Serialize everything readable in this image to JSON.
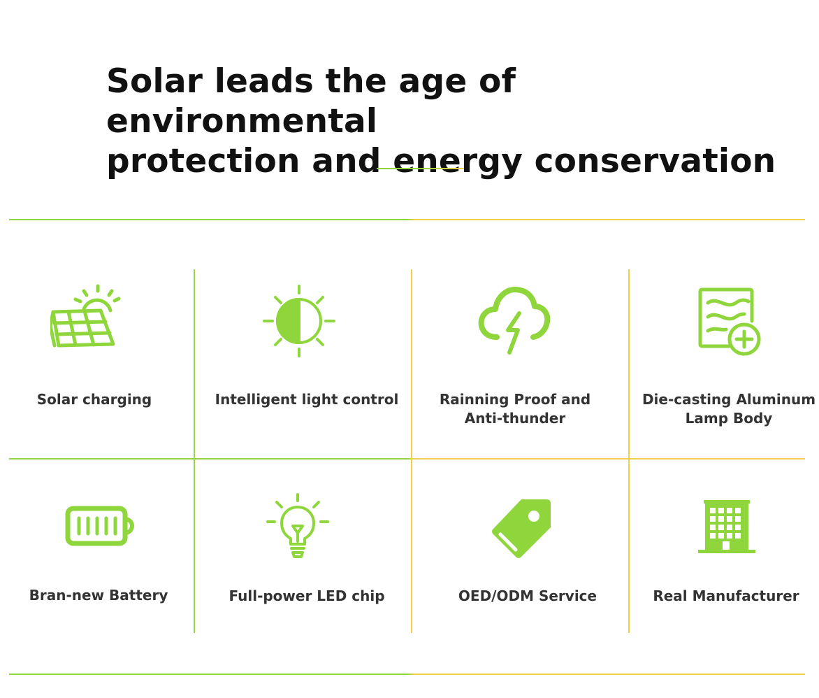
{
  "title": {
    "line1": "Solar leads the age of environmental",
    "line2": "protection and energy conservation"
  },
  "colors": {
    "accent_green": "#8ed63c",
    "accent_yellow": "#f0cf4a",
    "text": "#333333"
  },
  "features": [
    {
      "icon": "solar-panel-icon",
      "label": [
        "Solar charging"
      ]
    },
    {
      "icon": "sun-light-control-icon",
      "label": [
        "Intelligent light control"
      ]
    },
    {
      "icon": "cloud-lightning-icon",
      "label": [
        "Rainning Proof and",
        "Anti-thunder"
      ]
    },
    {
      "icon": "aluminum-body-icon",
      "label": [
        "Die-casting Aluminum",
        "Lamp Body"
      ]
    },
    {
      "icon": "battery-icon",
      "label": [
        "Bran-new Battery"
      ]
    },
    {
      "icon": "light-bulb-icon",
      "label": [
        "Full-power LED chip"
      ]
    },
    {
      "icon": "price-tag-icon",
      "label": [
        "OED/ODM Service"
      ]
    },
    {
      "icon": "building-icon",
      "label": [
        "Real Manufacturer"
      ]
    }
  ]
}
